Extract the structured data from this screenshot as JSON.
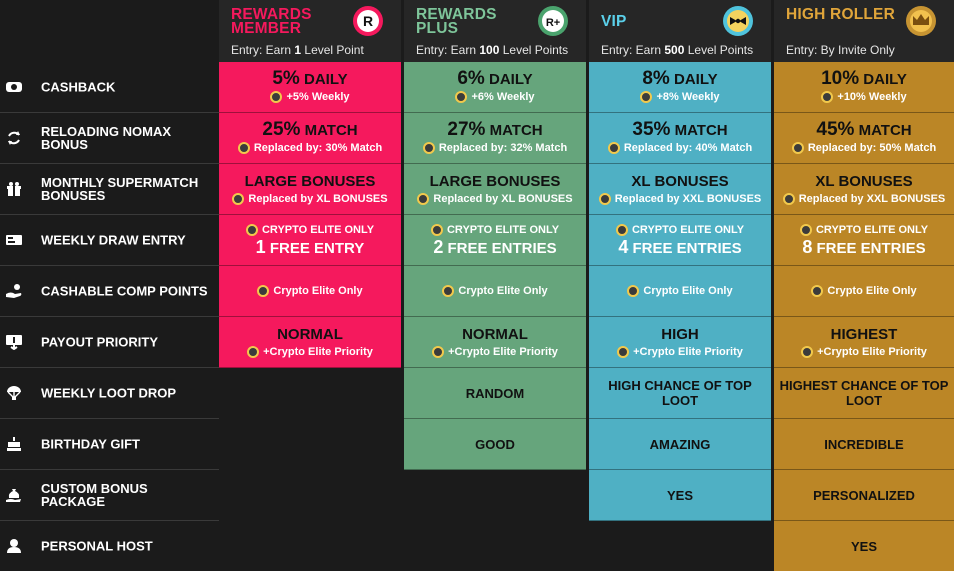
{
  "tiers": [
    {
      "title": "REWARDS MEMBER",
      "entry_prefix": "Entry: Earn",
      "entry_value": "1",
      "entry_suffix": "Level Point",
      "badge": "R",
      "badge_icon": "r-badge-icon",
      "color": "#f5195d",
      "title_color": "#f5195d"
    },
    {
      "title": "REWARDS PLUS",
      "entry_prefix": "Entry: Earn",
      "entry_value": "100",
      "entry_suffix": "Level Points",
      "badge": "R+",
      "badge_icon": "r-plus-badge-icon",
      "color": "#66a57c",
      "title_color": "#7ec59a"
    },
    {
      "title": "VIP",
      "entry_prefix": "Entry: Earn",
      "entry_value": "500",
      "entry_suffix": "Level Points",
      "badge": "",
      "badge_icon": "bowtie-badge-icon",
      "color": "#4fb0c4",
      "title_color": "#5bd0ea"
    },
    {
      "title": "HIGH ROLLER",
      "entry_prefix": "Entry: By Invite Only",
      "entry_value": "",
      "entry_suffix": "",
      "badge": "",
      "badge_icon": "crown-badge-icon",
      "color": "#bb8626",
      "title_color": "#e0a53a"
    }
  ],
  "rows": [
    {
      "label": "CASHBACK",
      "icon": "cashback-icon"
    },
    {
      "label": "RELOADING NOMAX BONUS",
      "icon": "reload-icon"
    },
    {
      "label": "MONTHLY SUPERMATCH BONUSES",
      "icon": "gift-icon"
    },
    {
      "label": "WEEKLY DRAW ENTRY",
      "icon": "ticket-icon"
    },
    {
      "label": "CASHABLE COMP POINTS",
      "icon": "coin-hand-icon"
    },
    {
      "label": "PAYOUT PRIORITY",
      "icon": "payout-icon"
    },
    {
      "label": "WEEKLY LOOT DROP",
      "icon": "parachute-icon"
    },
    {
      "label": "BIRTHDAY GIFT",
      "icon": "cake-icon"
    },
    {
      "label": "CUSTOM BONUS PACKAGE",
      "icon": "money-bag-icon"
    },
    {
      "label": "PERSONAL HOST",
      "icon": "person-icon"
    }
  ],
  "cells": {
    "cashback": [
      {
        "pct": "5%",
        "unit": "DAILY",
        "sub": "+5% Weekly"
      },
      {
        "pct": "6%",
        "unit": "DAILY",
        "sub": "+6% Weekly"
      },
      {
        "pct": "8%",
        "unit": "DAILY",
        "sub": "+8% Weekly"
      },
      {
        "pct": "10%",
        "unit": "DAILY",
        "sub": "+10% Weekly"
      }
    ],
    "reload": [
      {
        "pct": "25%",
        "unit": "MATCH",
        "sub": "Replaced by: 30% Match"
      },
      {
        "pct": "27%",
        "unit": "MATCH",
        "sub": "Replaced by: 32% Match"
      },
      {
        "pct": "35%",
        "unit": "MATCH",
        "sub": "Replaced by: 40% Match"
      },
      {
        "pct": "45%",
        "unit": "MATCH",
        "sub": "Replaced by: 50% Match"
      }
    ],
    "supermatch": [
      {
        "main": "LARGE BONUSES",
        "sub": "Replaced by XL BONUSES"
      },
      {
        "main": "LARGE BONUSES",
        "sub": "Replaced by XL BONUSES"
      },
      {
        "main": "XL BONUSES",
        "sub": "Replaced by XXL BONUSES"
      },
      {
        "main": "XL BONUSES",
        "sub": "Replaced by XXL BONUSES"
      }
    ],
    "draw": [
      {
        "top": "CRYPTO ELITE ONLY",
        "num": "1",
        "label": "FREE ENTRY"
      },
      {
        "top": "CRYPTO ELITE ONLY",
        "num": "2",
        "label": "FREE ENTRIES"
      },
      {
        "top": "CRYPTO ELITE ONLY",
        "num": "4",
        "label": "FREE ENTRIES"
      },
      {
        "top": "CRYPTO ELITE ONLY",
        "num": "8",
        "label": "FREE ENTRIES"
      }
    ],
    "comp": [
      "Crypto Elite Only",
      "Crypto Elite Only",
      "Crypto Elite Only",
      "Crypto Elite Only"
    ],
    "payout": [
      {
        "main": "NORMAL",
        "sub": "+Crypto Elite Priority"
      },
      {
        "main": "NORMAL",
        "sub": "+Crypto Elite Priority"
      },
      {
        "main": "HIGH",
        "sub": "+Crypto Elite Priority"
      },
      {
        "main": "HIGHEST",
        "sub": "+Crypto Elite Priority"
      }
    ],
    "loot": [
      "",
      "RANDOM",
      "HIGH CHANCE OF TOP LOOT",
      "HIGHEST CHANCE OF TOP LOOT"
    ],
    "birthday": [
      "",
      "GOOD",
      "AMAZING",
      "INCREDIBLE"
    ],
    "custom": [
      "",
      "",
      "YES",
      "PERSONALIZED"
    ],
    "host": [
      "",
      "",
      "",
      "YES"
    ]
  }
}
